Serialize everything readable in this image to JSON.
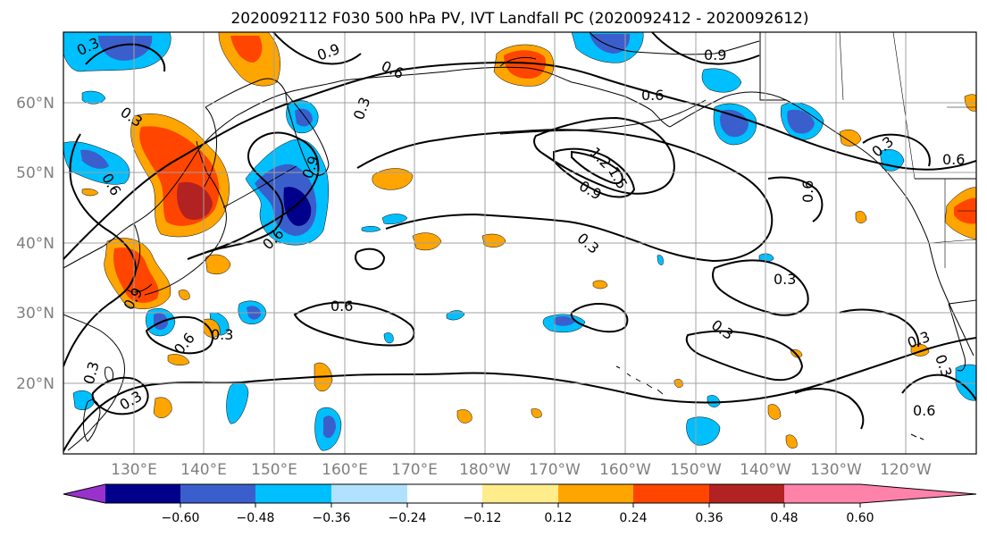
{
  "title": "2020092112 F030 500 hPa PV, IVT Landfall PC (2020092412 - 2020092612)",
  "lat_labels": [
    "60°N",
    "50°N",
    "40°N",
    "30°N",
    "20°N"
  ],
  "lon_labels": [
    "130°E",
    "140°E",
    "150°E",
    "160°E",
    "170°E",
    "180°W",
    "170°W",
    "160°W",
    "150°W",
    "140°W",
    "130°W",
    "120°W"
  ],
  "colorbar": {
    "colors": [
      "#9932cc",
      "#00008b",
      "#3a5fcd",
      "#00bfff",
      "#b0e2ff",
      "#ffffff",
      "#ffec8b",
      "#ffa500",
      "#ff4500",
      "#b22222",
      "#ff82ab"
    ],
    "tick_labels": [
      "−0.60",
      "−0.48",
      "−0.36",
      "−0.24",
      "−0.12",
      "0.12",
      "0.24",
      "0.36",
      "0.48",
      "0.60"
    ]
  },
  "contour_labels": [
    "0.3",
    "0.9",
    "0.6",
    "0.6",
    "0.9",
    "0.3",
    "0.6",
    "0.3",
    "0.9",
    "1.5",
    "1.2",
    "0.9",
    "0.6",
    "0.3",
    "0.6",
    "0.6",
    "0.3",
    "0.6",
    "0.3",
    "0.3",
    "0.3",
    "0.6",
    "0.3",
    "0.3",
    "0.6",
    "0.9",
    "0.3",
    "0.3"
  ],
  "colors": {
    "contour": "#000000",
    "grid": "#a0a0a0",
    "coast": "#000000"
  }
}
